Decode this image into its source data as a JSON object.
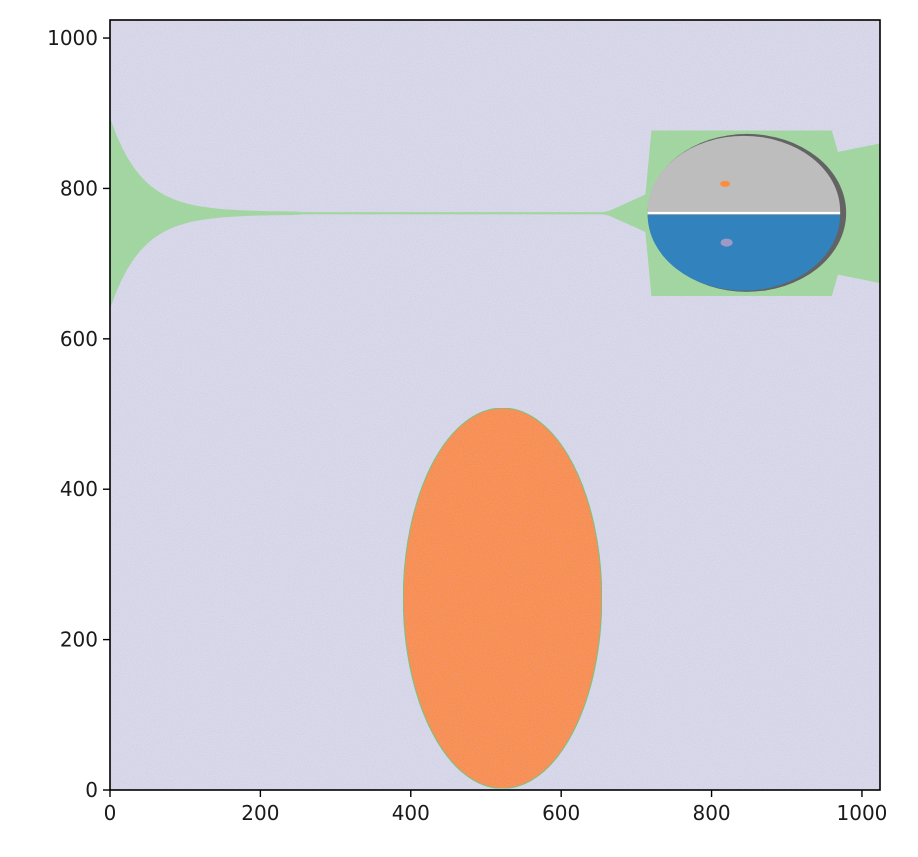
{
  "chart_data": {
    "type": "heatmap",
    "title": "",
    "xlabel": "",
    "ylabel": "",
    "xlim": [
      0,
      1024
    ],
    "ylim": [
      0,
      1024
    ],
    "grid": false,
    "x_ticks": [
      0,
      200,
      400,
      600,
      800,
      1000
    ],
    "y_ticks": [
      0,
      200,
      400,
      600,
      800,
      1000
    ],
    "x_tick_labels": [
      "0",
      "200",
      "400",
      "600",
      "800",
      "1000"
    ],
    "y_tick_labels": [
      "0",
      "200",
      "400",
      "600",
      "800",
      "1000"
    ],
    "background_color": "#dadaeb",
    "regions": [
      {
        "kind": "ellipse",
        "color": "#fd8d3c",
        "center": [
          522,
          255
        ],
        "radii": [
          132,
          253
        ]
      },
      {
        "kind": "half-ellipse-upper",
        "color": "#bdbdbd",
        "center": [
          843,
          770
        ],
        "radii": [
          128,
          100
        ]
      },
      {
        "kind": "half-ellipse-lower",
        "color": "#3182bd",
        "center": [
          843,
          765
        ],
        "radii": [
          128,
          101
        ]
      },
      {
        "kind": "thin-band",
        "color": "#a1d99b",
        "y": 767
      }
    ],
    "spots": [
      {
        "color": "#fd8d3c",
        "center": [
          818,
          806
        ]
      },
      {
        "color": "#9e9ac8",
        "center": [
          820,
          728
        ]
      }
    ]
  }
}
